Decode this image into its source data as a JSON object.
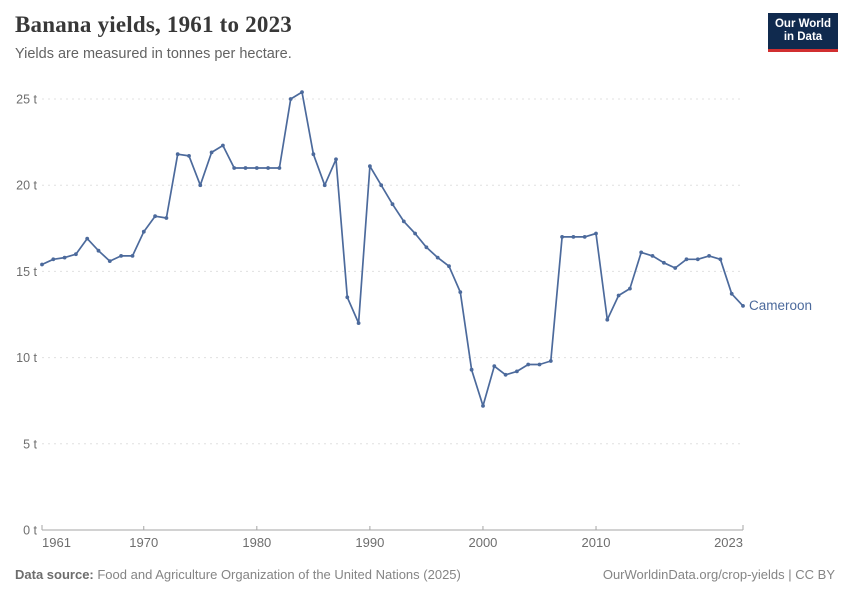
{
  "header": {
    "title": "Banana yields, 1961 to 2023",
    "subtitle": "Yields are measured in tonnes per hectare.",
    "logo": {
      "line1": "Our World",
      "line2": "in Data"
    }
  },
  "chart_data": {
    "type": "line",
    "title": "Banana yields, 1961 to 2023",
    "ylabel": "tonnes per hectare",
    "xlabel": "",
    "grid": "horizontal-dashed",
    "legend_position": "end-of-line-label",
    "xlim": [
      1961,
      2023
    ],
    "ylim": [
      0,
      25
    ],
    "y_ticks": [
      0,
      5,
      10,
      15,
      20,
      25
    ],
    "y_tick_suffix": " t",
    "x_tick_labels": [
      1961,
      1970,
      1980,
      1990,
      2000,
      2010,
      2023
    ],
    "series": [
      {
        "name": "Cameroon",
        "color": "#4C6A9C",
        "x": [
          1961,
          1962,
          1963,
          1964,
          1965,
          1966,
          1967,
          1968,
          1969,
          1970,
          1971,
          1972,
          1973,
          1974,
          1975,
          1976,
          1977,
          1978,
          1979,
          1980,
          1981,
          1982,
          1983,
          1984,
          1985,
          1986,
          1987,
          1988,
          1989,
          1990,
          1991,
          1992,
          1993,
          1994,
          1995,
          1996,
          1997,
          1998,
          1999,
          2000,
          2001,
          2002,
          2003,
          2004,
          2005,
          2006,
          2007,
          2008,
          2009,
          2010,
          2011,
          2012,
          2013,
          2014,
          2015,
          2016,
          2017,
          2018,
          2019,
          2020,
          2021,
          2022,
          2023
        ],
        "values": [
          15.4,
          15.7,
          15.8,
          16.0,
          16.9,
          16.2,
          15.6,
          15.9,
          15.9,
          17.3,
          18.2,
          18.1,
          21.8,
          21.7,
          20.0,
          21.9,
          22.3,
          21.0,
          21.0,
          21.0,
          21.0,
          21.0,
          25.0,
          25.4,
          21.8,
          20.0,
          21.5,
          13.5,
          12.0,
          21.1,
          20.0,
          18.9,
          17.9,
          17.2,
          16.4,
          15.8,
          15.3,
          13.8,
          9.3,
          7.2,
          9.5,
          9.0,
          9.2,
          9.6,
          9.6,
          9.8,
          17.0,
          17.0,
          17.0,
          17.2,
          12.2,
          13.6,
          14.0,
          16.1,
          15.9,
          15.5,
          15.2,
          15.7,
          15.7,
          15.9,
          15.7,
          13.7,
          13.0
        ]
      }
    ]
  },
  "footer": {
    "datasource_label": "Data source:",
    "datasource_text": " Food and Agriculture Organization of the United Nations (2025)",
    "credit": "OurWorldinData.org/crop-yields | CC BY"
  },
  "colors": {
    "line": "#4C6A9C",
    "gridline": "#e0e0e0",
    "axis": "#a5a5a5",
    "tick_text": "#6e6e6e",
    "logo_bg": "#102a4e",
    "logo_accent": "#d12f30"
  }
}
